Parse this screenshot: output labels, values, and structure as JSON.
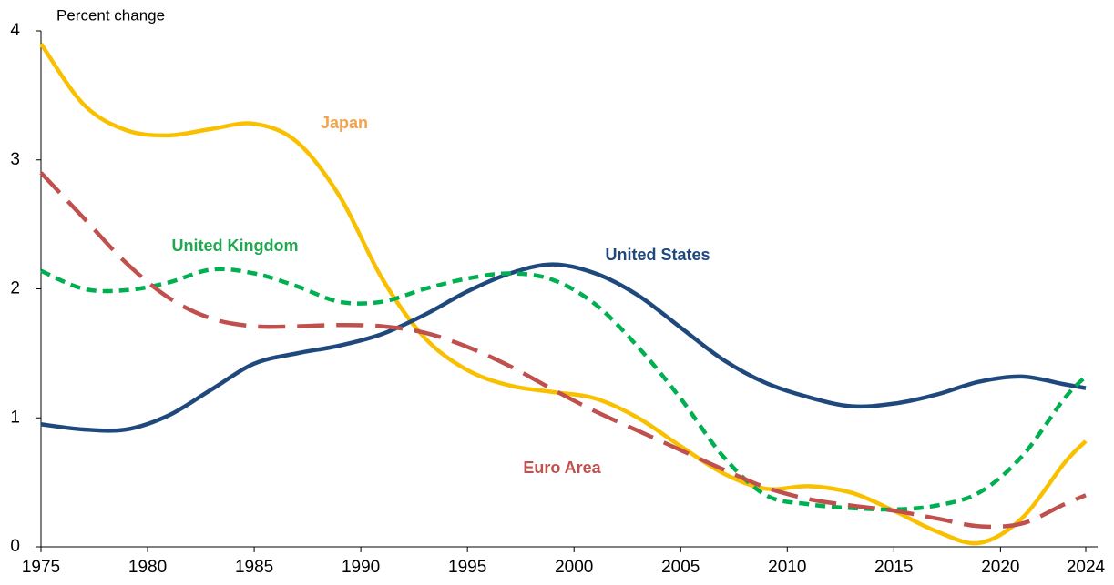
{
  "chart_data": {
    "type": "line",
    "y_label": "Percent change",
    "x": [
      1975,
      1977,
      1979,
      1981,
      1983,
      1985,
      1987,
      1989,
      1991,
      1993,
      1995,
      1997,
      1999,
      2001,
      2003,
      2005,
      2007,
      2009,
      2011,
      2013,
      2015,
      2017,
      2019,
      2021,
      2023,
      2024
    ],
    "series": [
      {
        "name": "Japan",
        "color": "#f9c000",
        "label_color": "#f4a34a",
        "dash": "solid",
        "values": [
          3.9,
          3.43,
          3.23,
          3.19,
          3.24,
          3.28,
          3.14,
          2.72,
          2.08,
          1.62,
          1.37,
          1.25,
          1.2,
          1.15,
          1.0,
          0.78,
          0.57,
          0.45,
          0.47,
          0.42,
          0.28,
          0.12,
          0.03,
          0.22,
          0.65,
          0.82
        ]
      },
      {
        "name": "United States",
        "color": "#1f497d",
        "label_color": "#1f497d",
        "dash": "solid",
        "values": [
          0.95,
          0.91,
          0.91,
          1.02,
          1.22,
          1.42,
          1.5,
          1.56,
          1.65,
          1.8,
          1.98,
          2.12,
          2.19,
          2.12,
          1.95,
          1.7,
          1.45,
          1.27,
          1.16,
          1.09,
          1.11,
          1.18,
          1.28,
          1.32,
          1.26,
          1.23
        ]
      },
      {
        "name": "United Kingdom",
        "color": "#00b050",
        "label_color": "#1fa84f",
        "dash": "short",
        "values": [
          2.14,
          2.0,
          1.99,
          2.05,
          2.15,
          2.12,
          2.02,
          1.9,
          1.9,
          2.0,
          2.08,
          2.12,
          2.07,
          1.88,
          1.55,
          1.15,
          0.7,
          0.4,
          0.33,
          0.3,
          0.29,
          0.32,
          0.42,
          0.7,
          1.15,
          1.32
        ]
      },
      {
        "name": "Euro Area",
        "color": "#c0504d",
        "label_color": "#c0504d",
        "dash": "long",
        "values": [
          2.9,
          2.55,
          2.2,
          1.93,
          1.77,
          1.71,
          1.71,
          1.72,
          1.71,
          1.66,
          1.55,
          1.4,
          1.22,
          1.05,
          0.9,
          0.75,
          0.6,
          0.46,
          0.37,
          0.32,
          0.28,
          0.22,
          0.16,
          0.18,
          0.33,
          0.4
        ]
      }
    ],
    "xlim": [
      1975,
      2024
    ],
    "xticks": [
      1975,
      1980,
      1985,
      1990,
      1995,
      2000,
      2005,
      2010,
      2015,
      2020,
      2024
    ],
    "ylim": [
      0,
      4
    ],
    "yticks": [
      0,
      1,
      2,
      3,
      4
    ],
    "grid": false
  }
}
